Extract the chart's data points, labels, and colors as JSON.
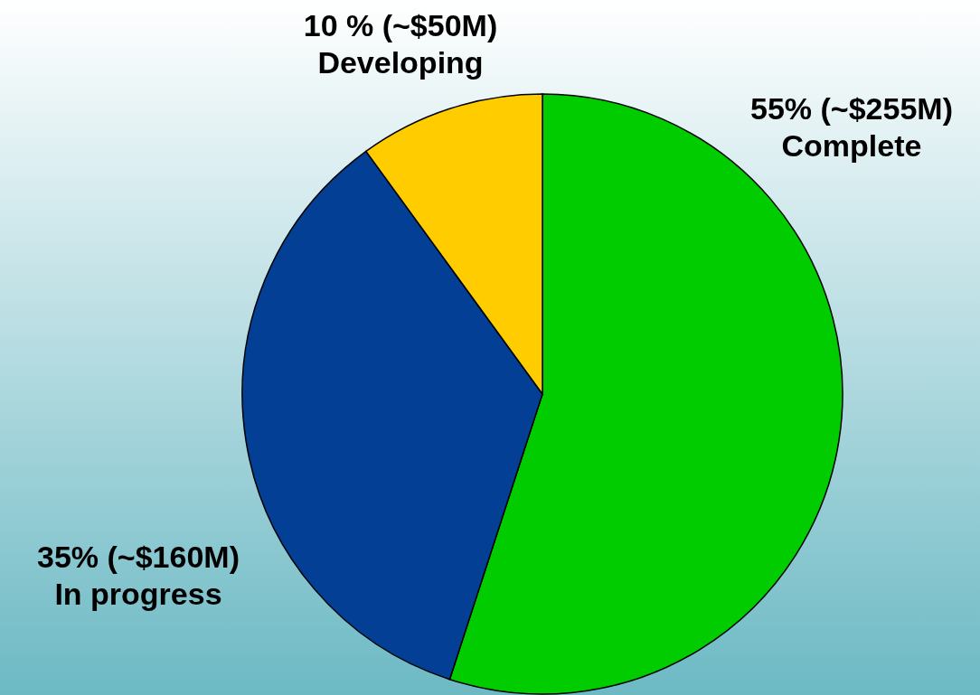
{
  "chart_data": {
    "type": "pie",
    "categories": [
      "Complete",
      "In progress",
      "Developing"
    ],
    "values": [
      55,
      35,
      10
    ],
    "colors": [
      "#00cc00",
      "#043f96",
      "#ffcc00"
    ],
    "value_labels": [
      "55% (~$255M)",
      "35% (~$160M)",
      "10 % (~$50M)"
    ]
  }
}
